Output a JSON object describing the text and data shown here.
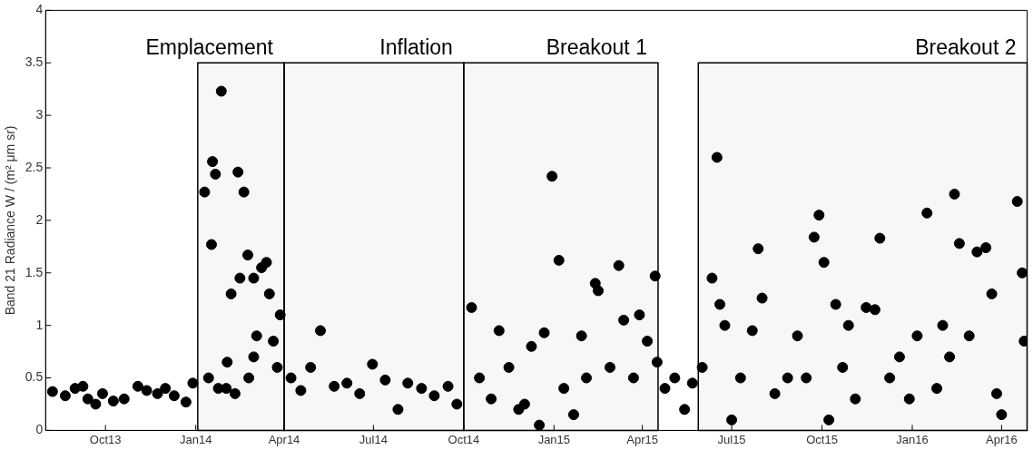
{
  "chart_data": {
    "type": "scatter",
    "ylabel": "Band 21 Radiance W / (m² μm sr)",
    "marker": "circle",
    "grid": false,
    "legend": false,
    "xlim": [
      "2013-08-01",
      "2016-04-27"
    ],
    "ylim": [
      0,
      4
    ],
    "xticks": [
      {
        "value": "2013-10-01",
        "label": "Oct13"
      },
      {
        "value": "2014-01-01",
        "label": "Jan14"
      },
      {
        "value": "2014-04-01",
        "label": "Apr14"
      },
      {
        "value": "2014-07-01",
        "label": "Jul14"
      },
      {
        "value": "2014-10-01",
        "label": "Oct14"
      },
      {
        "value": "2015-01-01",
        "label": "Jan15"
      },
      {
        "value": "2015-04-01",
        "label": "Apr15"
      },
      {
        "value": "2015-07-01",
        "label": "Jul15"
      },
      {
        "value": "2015-10-01",
        "label": "Oct15"
      },
      {
        "value": "2016-01-01",
        "label": "Jan16"
      },
      {
        "value": "2016-04-01",
        "label": "Apr16"
      }
    ],
    "yticks": [
      0,
      0.5,
      1,
      1.5,
      2,
      2.5,
      3,
      3.5,
      4
    ],
    "bands": [
      {
        "axis": "x",
        "from": "2014-01-03",
        "to": "2014-04-01",
        "label": "Emplacement"
      },
      {
        "axis": "x",
        "from": "2014-04-01",
        "to": "2014-10-01",
        "label": "Inflation"
      },
      {
        "axis": "x",
        "from": "2014-10-01",
        "to": "2015-04-17",
        "label": "Breakout 1"
      },
      {
        "axis": "x",
        "from": "2015-05-28",
        "to": "2016-04-27",
        "label": "Breakout 2"
      }
    ],
    "series": [
      {
        "color": "#000000",
        "x": [
          "2013-08-08",
          "2013-08-21",
          "2013-08-31",
          "2013-09-08",
          "2013-09-13",
          "2013-09-21",
          "2013-09-28",
          "2013-10-09",
          "2013-10-20",
          "2013-11-03",
          "2013-11-12",
          "2013-11-23",
          "2013-12-01",
          "2013-12-10",
          "2013-12-22",
          "2013-12-29",
          "2014-01-10",
          "2014-01-14",
          "2014-01-17",
          "2014-01-18",
          "2014-01-21",
          "2014-01-24",
          "2014-01-27",
          "2014-02-01",
          "2014-02-02",
          "2014-02-06",
          "2014-02-10",
          "2014-02-13",
          "2014-02-15",
          "2014-02-19",
          "2014-02-23",
          "2014-02-24",
          "2014-03-01",
          "2014-03-01",
          "2014-03-04",
          "2014-03-09",
          "2014-03-14",
          "2014-03-17",
          "2014-03-21",
          "2014-03-25",
          "2014-03-28",
          "2014-04-08",
          "2014-04-18",
          "2014-04-28",
          "2014-05-08",
          "2014-05-22",
          "2014-06-04",
          "2014-06-17",
          "2014-06-30",
          "2014-07-13",
          "2014-07-26",
          "2014-08-05",
          "2014-08-19",
          "2014-09-01",
          "2014-09-15",
          "2014-09-24",
          "2014-10-09",
          "2014-10-17",
          "2014-10-29",
          "2014-11-06",
          "2014-11-16",
          "2014-11-26",
          "2014-12-02",
          "2014-12-09",
          "2014-12-17",
          "2014-12-22",
          "2014-12-30",
          "2015-01-06",
          "2015-01-11",
          "2015-01-21",
          "2015-01-29",
          "2015-02-03",
          "2015-02-12",
          "2015-02-15",
          "2015-02-27",
          "2015-03-08",
          "2015-03-13",
          "2015-03-23",
          "2015-03-29",
          "2015-04-06",
          "2015-04-14",
          "2015-04-16",
          "2015-04-24",
          "2015-05-04",
          "2015-05-14",
          "2015-05-22",
          "2015-06-01",
          "2015-06-11",
          "2015-06-16",
          "2015-06-19",
          "2015-06-24",
          "2015-07-01",
          "2015-07-10",
          "2015-07-22",
          "2015-07-28",
          "2015-08-01",
          "2015-08-14",
          "2015-08-27",
          "2015-09-06",
          "2015-09-15",
          "2015-09-23",
          "2015-09-28",
          "2015-10-03",
          "2015-10-08",
          "2015-10-15",
          "2015-10-22",
          "2015-10-28",
          "2015-11-04",
          "2015-11-15",
          "2015-11-24",
          "2015-11-29",
          "2015-12-09",
          "2015-12-19",
          "2015-12-29",
          "2016-01-06",
          "2016-01-16",
          "2016-01-26",
          "2016-02-01",
          "2016-02-08",
          "2016-02-13",
          "2016-02-18",
          "2016-02-28",
          "2016-03-07",
          "2016-03-16",
          "2016-03-22",
          "2016-03-27",
          "2016-04-01",
          "2016-04-17",
          "2016-04-22",
          "2016-04-24"
        ],
        "values": [
          0.37,
          0.33,
          0.4,
          0.42,
          0.3,
          0.25,
          0.35,
          0.28,
          0.3,
          0.42,
          0.38,
          0.35,
          0.4,
          0.33,
          0.27,
          0.45,
          2.27,
          0.5,
          1.77,
          2.56,
          2.44,
          0.4,
          3.23,
          0.4,
          0.65,
          1.3,
          0.35,
          2.46,
          1.45,
          2.27,
          1.67,
          0.5,
          1.45,
          0.7,
          0.9,
          1.55,
          1.6,
          1.3,
          0.85,
          0.6,
          1.1,
          0.5,
          0.38,
          0.6,
          0.95,
          0.42,
          0.45,
          0.35,
          0.63,
          0.48,
          0.2,
          0.45,
          0.4,
          0.33,
          0.42,
          0.25,
          1.17,
          0.5,
          0.3,
          0.95,
          0.6,
          0.2,
          0.25,
          0.8,
          0.05,
          0.93,
          2.42,
          1.62,
          0.4,
          0.15,
          0.9,
          0.5,
          1.4,
          1.33,
          0.6,
          1.57,
          1.05,
          0.5,
          1.1,
          0.85,
          1.47,
          0.65,
          0.4,
          0.5,
          0.2,
          0.45,
          0.6,
          1.45,
          2.6,
          1.2,
          1.0,
          0.1,
          0.5,
          0.95,
          1.73,
          1.26,
          0.35,
          0.5,
          0.9,
          0.5,
          1.84,
          2.05,
          1.6,
          0.1,
          1.2,
          0.6,
          1.0,
          0.3,
          1.17,
          1.15,
          1.83,
          0.5,
          0.7,
          0.3,
          0.9,
          2.07,
          0.4,
          1.0,
          0.7,
          2.25,
          1.78,
          0.9,
          1.7,
          1.74,
          1.3,
          0.35,
          0.15,
          2.18,
          1.5,
          0.85
        ]
      }
    ]
  }
}
